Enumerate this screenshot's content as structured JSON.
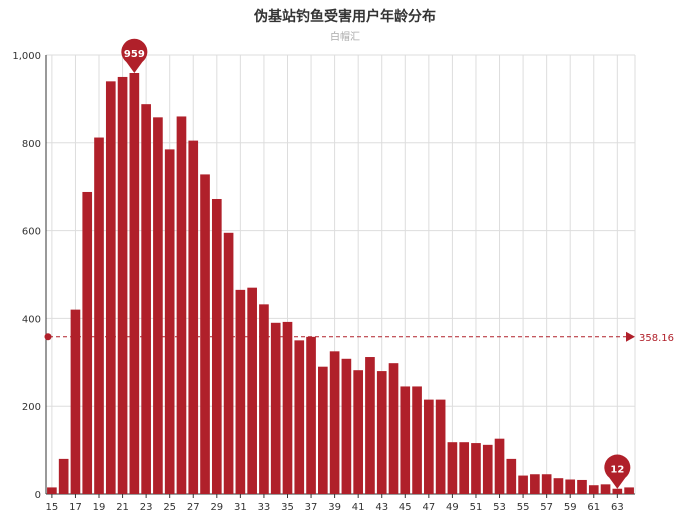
{
  "chart_data": {
    "type": "bar",
    "title": "伪基站钓鱼受害用户年龄分布",
    "subtitle": "白帽汇",
    "xlabel": "",
    "ylabel": "",
    "ylim": [
      0,
      1000
    ],
    "yticks": [
      0,
      200,
      400,
      600,
      800,
      1000
    ],
    "ytick_labels": [
      "0",
      "200",
      "400",
      "600",
      "800",
      "1,000"
    ],
    "grid": true,
    "colors": {
      "bar": "#b0202a",
      "grid": "#dddddd",
      "axis": "#333333"
    },
    "categories": [
      "15",
      "16",
      "17",
      "18",
      "19",
      "20",
      "21",
      "22",
      "23",
      "24",
      "25",
      "26",
      "27",
      "28",
      "29",
      "30",
      "31",
      "32",
      "33",
      "34",
      "35",
      "36",
      "37",
      "38",
      "39",
      "40",
      "41",
      "42",
      "43",
      "44",
      "45",
      "46",
      "47",
      "48",
      "49",
      "50",
      "51",
      "52",
      "53",
      "54",
      "55",
      "56",
      "57",
      "58",
      "59",
      "60",
      "61",
      "62",
      "63",
      "64"
    ],
    "xtick_labels": [
      "15",
      "17",
      "19",
      "21",
      "23",
      "25",
      "27",
      "29",
      "31",
      "33",
      "35",
      "37",
      "39",
      "41",
      "43",
      "45",
      "47",
      "49",
      "51",
      "53",
      "55",
      "57",
      "59",
      "61",
      "63"
    ],
    "values": [
      15,
      80,
      420,
      688,
      812,
      940,
      950,
      959,
      888,
      858,
      785,
      860,
      805,
      728,
      672,
      595,
      465,
      470,
      432,
      390,
      392,
      350,
      358,
      290,
      325,
      308,
      282,
      312,
      280,
      298,
      245,
      245,
      215,
      215,
      118,
      118,
      116,
      112,
      126,
      80,
      42,
      45,
      45,
      36,
      33,
      32,
      20,
      22,
      12,
      15
    ],
    "markpoints": [
      {
        "label": "959",
        "category": "22",
        "value": 959
      },
      {
        "label": "12",
        "category": "63",
        "value": 12
      }
    ],
    "markline": {
      "label": "358.16",
      "value": 358.16
    }
  }
}
